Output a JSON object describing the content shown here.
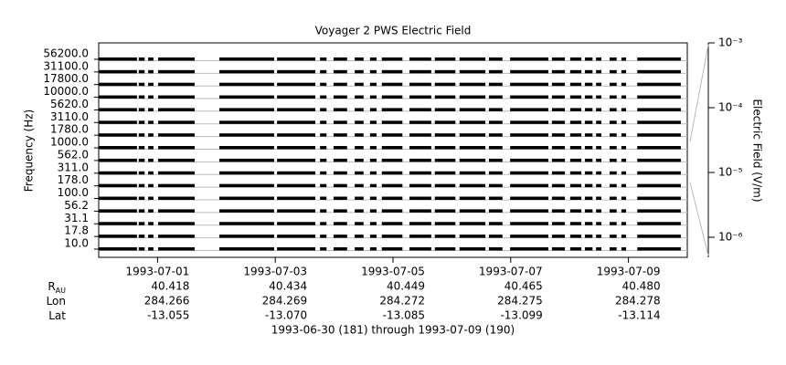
{
  "chart_data": {
    "type": "stacked-spectra",
    "title": "Voyager 2 PWS Electric Field",
    "y_label": "Frequency (Hz)",
    "y2_label": "Electric Field (V/m)",
    "categories": [
      "10.0",
      "17.8",
      "31.1",
      "56.2",
      "100.0",
      "178.0",
      "311.0",
      "562.0",
      "1000.0",
      "1780.0",
      "3110.0",
      "5620.0",
      "10000.0",
      "17800.0",
      "31100.0",
      "56200.0"
    ],
    "xlim": [
      0,
      10
    ],
    "xticks": [
      {
        "value": 1,
        "label": "1993-07-01"
      },
      {
        "value": 3,
        "label": "1993-07-03"
      },
      {
        "value": 5,
        "label": "1993-07-05"
      },
      {
        "value": 7,
        "label": "1993-07-07"
      },
      {
        "value": 9,
        "label": "1993-07-09"
      }
    ],
    "intervals_start": [
      0,
      0.68,
      0.84,
      1.01,
      2.05,
      3.03,
      3.76,
      3.99,
      4.35,
      4.61,
      4.81,
      5.28,
      5.71,
      6.13,
      6.63,
      6.99,
      7.7,
      8.01,
      8.26,
      8.45,
      8.68,
      8.88,
      9.15
    ],
    "intervals_end": [
      0.65,
      0.78,
      0.93,
      1.63,
      2.98,
      3.68,
      3.87,
      4.22,
      4.5,
      4.72,
      5.16,
      5.65,
      6.06,
      6.57,
      6.86,
      7.64,
      7.92,
      8.2,
      8.39,
      8.54,
      8.8,
      8.96,
      9.89
    ],
    "color": "#000000",
    "y2lim": [
      4.9e-07,
      0.001
    ],
    "y2log": true,
    "y2ticks": [
      {
        "value": 0.001,
        "label": "10⁻³"
      },
      {
        "value": 0.0001,
        "label": "10⁻⁴"
      },
      {
        "value": 1e-05,
        "label": "10⁻⁵"
      },
      {
        "value": 1e-06,
        "label": "10⁻⁶"
      }
    ],
    "ephemeris": [
      {
        "label": "R",
        "label_sub": "AU",
        "values": [
          "40.418",
          "40.434",
          "40.449",
          "40.465",
          "40.480"
        ]
      },
      {
        "label": "Lon",
        "values": [
          "284.266",
          "284.269",
          "284.272",
          "284.275",
          "284.278"
        ]
      },
      {
        "label": "Lat",
        "values": [
          "-13.055",
          "-13.070",
          "-13.085",
          "-13.099",
          "-13.114"
        ]
      }
    ],
    "footer": "1993-06-30 (181) through 1993-07-09 (190)"
  }
}
